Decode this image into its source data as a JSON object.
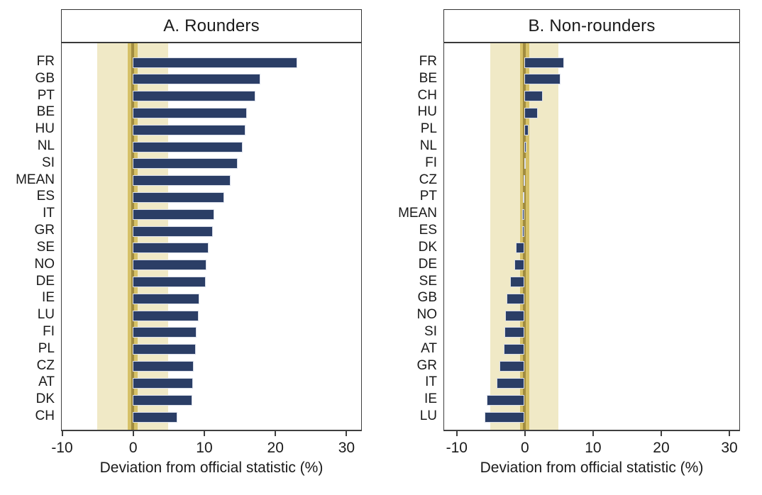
{
  "figure": {
    "background": "#ffffff",
    "colors": {
      "bar_fill": "#2b3e66",
      "bar_outline": "#d9deea",
      "outer_band": "#f0e9c6",
      "zero_band": "#d6c167",
      "zero_line": "#a18c3f",
      "axis": "#3f3f3f",
      "text": "#1a1a1a"
    }
  },
  "chart_data": [
    {
      "type": "bar",
      "orientation": "horizontal",
      "title": "A. Rounders",
      "xlabel": "Deviation from official statistic (%)",
      "xlim": [
        -10,
        32
      ],
      "xticks": [
        -10,
        0,
        10,
        20,
        30
      ],
      "shaded_band": [
        -5,
        5
      ],
      "zero_band": [
        -0.7,
        0.7
      ],
      "grid": false,
      "legend": "none",
      "categories": [
        "FR",
        "GB",
        "PT",
        "BE",
        "HU",
        "NL",
        "SI",
        "MEAN",
        "ES",
        "IT",
        "GR",
        "SE",
        "NO",
        "DE",
        "IE",
        "LU",
        "FI",
        "PL",
        "CZ",
        "AT",
        "DK",
        "CH"
      ],
      "values": [
        23.1,
        17.9,
        17.2,
        16.0,
        15.8,
        15.4,
        14.7,
        13.7,
        12.8,
        11.4,
        11.2,
        10.7,
        10.4,
        10.3,
        9.4,
        9.3,
        9.0,
        8.9,
        8.6,
        8.5,
        8.4,
        6.3
      ]
    },
    {
      "type": "bar",
      "orientation": "horizontal",
      "title": "B. Non-rounders",
      "xlabel": "Deviation from official statistic (%)",
      "xlim": [
        -11.8,
        31.4
      ],
      "xticks": [
        -10,
        0,
        10,
        20,
        30
      ],
      "shaded_band": [
        -5,
        5
      ],
      "zero_band": [
        -0.7,
        0.7
      ],
      "grid": false,
      "legend": "none",
      "categories": [
        "FR",
        "BE",
        "CH",
        "HU",
        "PL",
        "NL",
        "FI",
        "CZ",
        "PT",
        "MEAN",
        "ES",
        "DK",
        "DE",
        "SE",
        "GB",
        "NO",
        "SI",
        "AT",
        "GR",
        "IT",
        "IE",
        "LU"
      ],
      "values": [
        5.8,
        5.3,
        2.7,
        1.9,
        0.6,
        0.3,
        0.2,
        -0.1,
        -0.2,
        -0.3,
        -0.4,
        -1.3,
        -1.5,
        -2.1,
        -2.6,
        -2.8,
        -3.0,
        -3.1,
        -3.7,
        -4.1,
        -5.6,
        -5.9
      ]
    }
  ]
}
